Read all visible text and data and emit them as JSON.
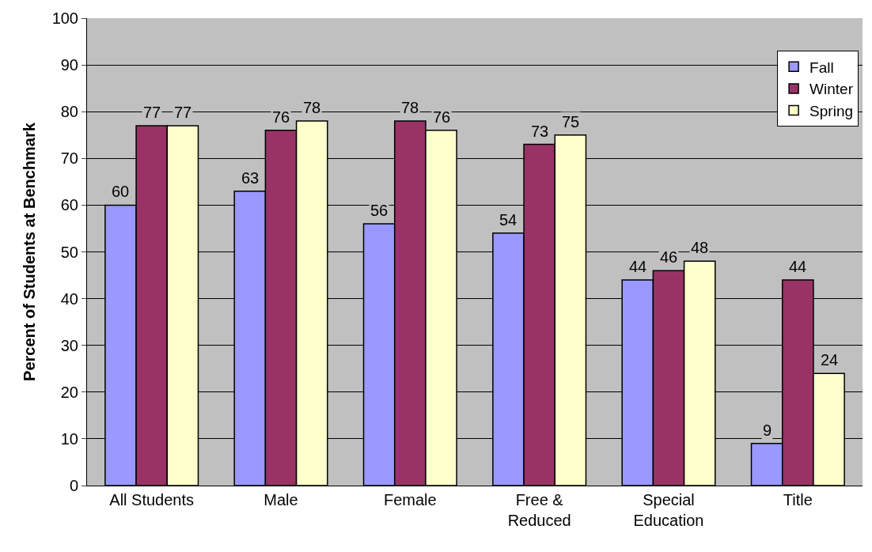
{
  "chart_data": {
    "type": "bar",
    "ylabel": "Percent of Students at Benchmark",
    "categories": [
      "All Students",
      "Male",
      "Female",
      "Free &\nReduced",
      "Special\nEducation",
      "Title"
    ],
    "series": [
      {
        "name": "Fall",
        "color": "#9999ff",
        "values": [
          60,
          63,
          56,
          54,
          44,
          9
        ]
      },
      {
        "name": "Winter",
        "color": "#993366",
        "values": [
          77,
          76,
          78,
          73,
          46,
          44
        ]
      },
      {
        "name": "Spring",
        "color": "#ffffcc",
        "values": [
          77,
          78,
          76,
          75,
          48,
          24
        ]
      }
    ],
    "ylim": [
      0,
      100
    ],
    "yticks": [
      0,
      10,
      20,
      30,
      40,
      50,
      60,
      70,
      80,
      90,
      100
    ],
    "grid": "y",
    "legend": "top right",
    "data_labels": true
  }
}
